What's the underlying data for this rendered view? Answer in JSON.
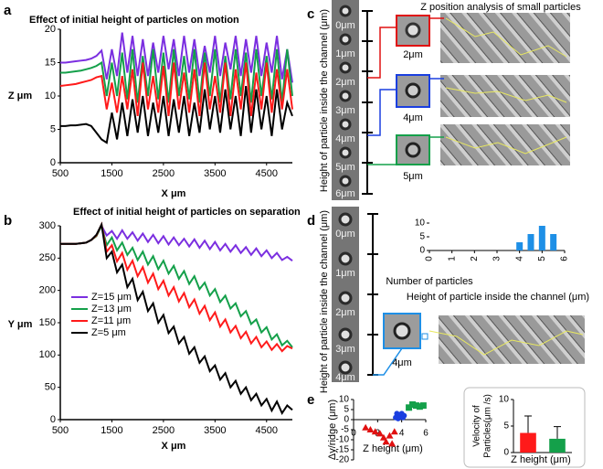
{
  "figure": {
    "panel_letters": [
      "a",
      "b",
      "c",
      "d",
      "e"
    ],
    "c": {
      "title": "Z position analysis of small particles",
      "strip_labels": [
        "0μm",
        "1μm",
        "2μm",
        "3μm",
        "4μm",
        "5μm",
        "6μm"
      ],
      "axis_label": "Height of particle inside the channel (μm)",
      "insets": [
        "2μm",
        "4μm",
        "5μm"
      ]
    },
    "d": {
      "strip_labels": [
        "0μm",
        "1μm",
        "2μm",
        "3μm",
        "4μm"
      ],
      "axis_label": "Height of particle inside the channel (μm)",
      "inset": "4μm"
    }
  },
  "chart_data": [
    {
      "type": "line",
      "title": "Effect of initial height of particles on motion",
      "xlabel": "X μm",
      "ylabel": "Z μm",
      "xlim": [
        500,
        5000
      ],
      "ylim": [
        0,
        20
      ],
      "xticks": [
        500,
        1500,
        2500,
        3500,
        4500
      ],
      "yticks": [
        0,
        5,
        10,
        15,
        20
      ],
      "x": [
        500,
        600,
        700,
        800,
        900,
        1000,
        1100,
        1200,
        1300,
        1400,
        1500,
        1600,
        1700,
        1800,
        1900,
        2000,
        2100,
        2200,
        2300,
        2400,
        2500,
        2600,
        2700,
        2800,
        2900,
        3000,
        3100,
        3200,
        3300,
        3400,
        3500,
        3600,
        3700,
        3800,
        3900,
        4000,
        4100,
        4200,
        4300,
        4400,
        4500,
        4600,
        4700,
        4800,
        4900,
        5000
      ],
      "series": [
        {
          "color": "#7b2fe0",
          "values": [
            15,
            15,
            15.1,
            15.2,
            15.3,
            15.4,
            15.6,
            16,
            16.8,
            12.5,
            17,
            13,
            19.5,
            13.5,
            19,
            13,
            18.5,
            13,
            18,
            13.5,
            19,
            14,
            18.5,
            13,
            19,
            13.5,
            18.5,
            13,
            17.5,
            13.5,
            19,
            13,
            18,
            14,
            19,
            13,
            18.5,
            13.5,
            19,
            13,
            18,
            13.5,
            19,
            12.5,
            17,
            12
          ]
        },
        {
          "color": "#14a04a",
          "values": [
            13.5,
            13.5,
            13.6,
            13.7,
            13.8,
            14,
            14.2,
            14.5,
            15,
            10,
            15,
            10,
            16.5,
            9.5,
            17,
            9,
            16,
            10,
            17,
            9.5,
            16.5,
            9,
            17,
            10,
            16,
            9.5,
            17,
            9,
            16.5,
            10,
            17,
            9,
            16,
            9.5,
            17,
            10,
            16.5,
            9,
            17,
            10,
            16,
            9.5,
            17,
            9,
            17,
            10
          ]
        },
        {
          "color": "#ff1a1a",
          "values": [
            11.5,
            11.6,
            11.7,
            11.8,
            12,
            12.2,
            12.4,
            12.8,
            13,
            8,
            12,
            7.5,
            13,
            8,
            14,
            7,
            15,
            8,
            13,
            7.5,
            14.5,
            7,
            15,
            8,
            13.5,
            7.5,
            14,
            7,
            15,
            8,
            13,
            7.5,
            15,
            7,
            14,
            8,
            15,
            7,
            13.5,
            8,
            15,
            7.5,
            14,
            8,
            14,
            8
          ]
        },
        {
          "color": "#000000",
          "values": [
            5.5,
            5.5,
            5.6,
            5.6,
            5.7,
            5.8,
            5.5,
            4.5,
            3.5,
            3,
            7.5,
            3.5,
            9,
            4,
            9.5,
            4.5,
            10,
            4,
            9,
            4.5,
            10,
            4,
            9.5,
            4.5,
            10,
            4,
            9,
            4.5,
            11,
            5,
            10,
            4.5,
            11,
            5,
            10,
            4,
            11.5,
            4.5,
            11,
            5,
            10,
            4,
            11,
            5,
            9,
            7
          ]
        }
      ]
    },
    {
      "type": "line",
      "title": "Effect of initial height of particles on separation",
      "xlabel": "X μm",
      "ylabel": "Y μm",
      "xlim": [
        500,
        5000
      ],
      "ylim": [
        0,
        300
      ],
      "xticks": [
        500,
        1500,
        2500,
        3500,
        4500
      ],
      "yticks": [
        0,
        50,
        100,
        150,
        200,
        250,
        300
      ],
      "legend": "center left",
      "x": [
        500,
        600,
        700,
        800,
        900,
        1000,
        1100,
        1200,
        1300,
        1400,
        1500,
        1600,
        1700,
        1800,
        1900,
        2000,
        2100,
        2200,
        2300,
        2400,
        2500,
        2600,
        2700,
        2800,
        2900,
        3000,
        3100,
        3200,
        3300,
        3400,
        3500,
        3600,
        3700,
        3800,
        3900,
        4000,
        4100,
        4200,
        4300,
        4400,
        4500,
        4600,
        4700,
        4800,
        4900,
        5000
      ],
      "series": [
        {
          "name": "Z=15 μm",
          "color": "#7b2fe0",
          "values": [
            272,
            272,
            272,
            272,
            273,
            274,
            278,
            285,
            300,
            285,
            292,
            280,
            293,
            280,
            290,
            277,
            288,
            275,
            286,
            273,
            284,
            271,
            282,
            270,
            280,
            268,
            279,
            266,
            277,
            264,
            275,
            262,
            272,
            260,
            270,
            258,
            267,
            255,
            265,
            253,
            262,
            250,
            258,
            247,
            252,
            246
          ]
        },
        {
          "name": "Z=13 μm",
          "color": "#14a04a",
          "values": [
            272,
            272,
            272,
            272,
            273,
            274,
            278,
            284,
            300,
            270,
            282,
            262,
            274,
            255,
            266,
            247,
            260,
            240,
            253,
            233,
            246,
            226,
            238,
            218,
            230,
            210,
            222,
            202,
            212,
            192,
            202,
            182,
            192,
            172,
            180,
            160,
            168,
            148,
            155,
            135,
            143,
            124,
            132,
            115,
            122,
            112
          ]
        },
        {
          "name": "Z=11 μm",
          "color": "#ff1a1a",
          "values": [
            272,
            272,
            272,
            272,
            273,
            274,
            278,
            285,
            302,
            260,
            270,
            245,
            258,
            232,
            246,
            222,
            236,
            212,
            226,
            202,
            215,
            192,
            205,
            183,
            196,
            174,
            186,
            164,
            176,
            154,
            166,
            144,
            155,
            135,
            145,
            126,
            136,
            118,
            128,
            112,
            121,
            108,
            117,
            106,
            114,
            110
          ]
        },
        {
          "name": "Z=5 μm",
          "color": "#000000",
          "values": [
            272,
            272,
            272,
            272,
            273,
            274,
            278,
            286,
            302,
            250,
            260,
            228,
            240,
            205,
            218,
            185,
            198,
            168,
            180,
            150,
            162,
            134,
            144,
            118,
            128,
            102,
            112,
            88,
            98,
            75,
            84,
            62,
            72,
            50,
            60,
            40,
            50,
            30,
            40,
            22,
            32,
            14,
            28,
            10,
            22,
            15
          ]
        }
      ]
    },
    {
      "type": "bar",
      "xlabel": "Height of particle inside the channel (μm)",
      "ylabel": "Number of particles",
      "xlim": [
        0,
        6
      ],
      "ylim": [
        0,
        10
      ],
      "xticks": [
        0,
        1,
        2,
        3,
        4,
        5,
        6
      ],
      "yticks": [
        0,
        5,
        10
      ],
      "x": [
        4,
        4.5,
        5,
        5.5
      ],
      "values": [
        3,
        6,
        9,
        6
      ],
      "color": "#1e8fe6"
    },
    {
      "type": "scatter",
      "xlabel": "Z height (μm)",
      "ylabel": "Δy/ridge (μm)",
      "xlim": [
        0,
        6
      ],
      "ylim": [
        -20,
        10
      ],
      "xticks": [
        0,
        2,
        4,
        6
      ],
      "yticks": [
        10,
        5,
        0,
        -5,
        -10,
        -15,
        -20
      ],
      "series": [
        {
          "color": "#e01010",
          "marker": "triangle",
          "x": [
            1,
            1.4,
            1.8,
            2.2,
            2.5,
            2.7,
            3,
            3.2,
            3.4
          ],
          "values": [
            -4,
            -5,
            -6,
            -7,
            -9,
            -11,
            -8,
            -12,
            -6
          ]
        },
        {
          "color": "#1a3fe0",
          "marker": "circle",
          "x": [
            3.5,
            3.6,
            3.7,
            3.8,
            3.9,
            4,
            4.1,
            4.2
          ],
          "values": [
            1,
            3,
            0.5,
            2,
            1.5,
            3,
            1,
            2
          ]
        },
        {
          "color": "#14a04a",
          "marker": "square",
          "x": [
            4.6,
            4.9,
            5.2,
            5.5,
            5.8
          ],
          "values": [
            6,
            7.5,
            7,
            6.5,
            7
          ]
        }
      ]
    },
    {
      "type": "bar",
      "xlabel": "Z height (μm)",
      "ylabel": [
        "Velocity of",
        "Particles(μm /s)"
      ],
      "ylim": [
        0,
        10
      ],
      "yticks": [
        0,
        5,
        10
      ],
      "categories": [
        null,
        null
      ],
      "values": [
        3.7,
        2.6
      ],
      "errors": [
        3.2,
        2.3
      ],
      "colors": [
        "#ff1a1a",
        "#14a04a"
      ]
    }
  ]
}
